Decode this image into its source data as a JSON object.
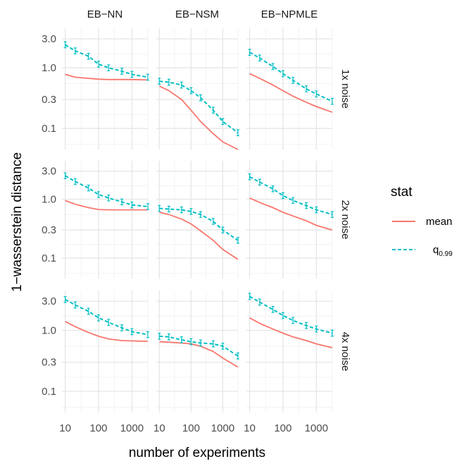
{
  "chart_data": {
    "type": "line",
    "xlabel": "number of experiments",
    "ylabel": "1−wasserstein distance",
    "x_scale": "log",
    "y_scale": "log",
    "x_ticks": [
      10,
      100,
      1000
    ],
    "x_tick_labels": [
      "10",
      "100",
      "1000"
    ],
    "y_ticks": [
      0.1,
      0.3,
      1.0,
      3.0
    ],
    "y_tick_labels": [
      "0.1",
      "0.3",
      "1.0",
      "3.0"
    ],
    "xlim": [
      8,
      3000
    ],
    "ylim": [
      0.045,
      4.5
    ],
    "grid": true,
    "columns": [
      "EB−NN",
      "EB−NSM",
      "EB−NPMLE"
    ],
    "rows": [
      "1x noise",
      "2x noise",
      "4x noise"
    ],
    "legend": {
      "title": "stat",
      "position": "right",
      "entries": [
        {
          "label": "mean",
          "color": "#F8766D",
          "dash": "solid"
        },
        {
          "label_base": "q",
          "label_sub": "0.99",
          "color": "#00BFC4",
          "dash": "dashed"
        }
      ]
    },
    "colors": {
      "mean": "#F8766D",
      "q099": "#00BFC4"
    },
    "x": [
      10,
      20,
      50,
      100,
      200,
      500,
      1000,
      3000
    ],
    "panels": [
      {
        "row": "1x noise",
        "col": "EB−NN",
        "mean": [
          0.78,
          0.7,
          0.67,
          0.65,
          0.64,
          0.64,
          0.64,
          0.63
        ],
        "q099": [
          2.4,
          1.9,
          1.55,
          1.15,
          1.0,
          0.88,
          0.78,
          0.7
        ]
      },
      {
        "row": "1x noise",
        "col": "EB−NSM",
        "mean": [
          0.5,
          0.42,
          0.3,
          0.2,
          0.13,
          0.082,
          0.06,
          0.045
        ],
        "q099": [
          0.6,
          0.58,
          0.52,
          0.42,
          0.32,
          0.2,
          0.13,
          0.085
        ]
      },
      {
        "row": "1x noise",
        "col": "EB−NPMLE",
        "mean": [
          0.8,
          0.67,
          0.52,
          0.42,
          0.34,
          0.27,
          0.23,
          0.185
        ],
        "q099": [
          1.8,
          1.45,
          1.05,
          0.8,
          0.62,
          0.45,
          0.37,
          0.28
        ]
      },
      {
        "row": "2x noise",
        "col": "EB−NN",
        "mean": [
          0.95,
          0.82,
          0.72,
          0.67,
          0.66,
          0.66,
          0.66,
          0.66
        ],
        "q099": [
          2.5,
          2.0,
          1.55,
          1.2,
          1.05,
          0.9,
          0.8,
          0.75
        ]
      },
      {
        "row": "2x noise",
        "col": "EB−NSM",
        "mean": [
          0.6,
          0.55,
          0.46,
          0.38,
          0.29,
          0.2,
          0.14,
          0.095
        ],
        "q099": [
          0.7,
          0.68,
          0.66,
          0.62,
          0.55,
          0.42,
          0.3,
          0.2
        ]
      },
      {
        "row": "2x noise",
        "col": "EB−NPMLE",
        "mean": [
          1.05,
          0.88,
          0.72,
          0.6,
          0.52,
          0.43,
          0.36,
          0.3
        ],
        "q099": [
          2.4,
          1.95,
          1.5,
          1.15,
          0.95,
          0.78,
          0.66,
          0.55
        ]
      },
      {
        "row": "4x noise",
        "col": "EB−NN",
        "mean": [
          1.4,
          1.15,
          0.92,
          0.8,
          0.72,
          0.68,
          0.67,
          0.66
        ],
        "q099": [
          3.2,
          2.6,
          2.05,
          1.6,
          1.35,
          1.1,
          0.95,
          0.85
        ]
      },
      {
        "row": "4x noise",
        "col": "EB−NSM",
        "mean": [
          0.65,
          0.64,
          0.62,
          0.6,
          0.55,
          0.45,
          0.35,
          0.25
        ],
        "q099": [
          0.8,
          0.78,
          0.7,
          0.65,
          0.62,
          0.6,
          0.55,
          0.38
        ]
      },
      {
        "row": "4x noise",
        "col": "EB−NPMLE",
        "mean": [
          1.6,
          1.3,
          1.05,
          0.9,
          0.78,
          0.68,
          0.6,
          0.52
        ],
        "q099": [
          3.6,
          2.9,
          2.2,
          1.75,
          1.45,
          1.2,
          1.05,
          0.9
        ]
      }
    ]
  }
}
